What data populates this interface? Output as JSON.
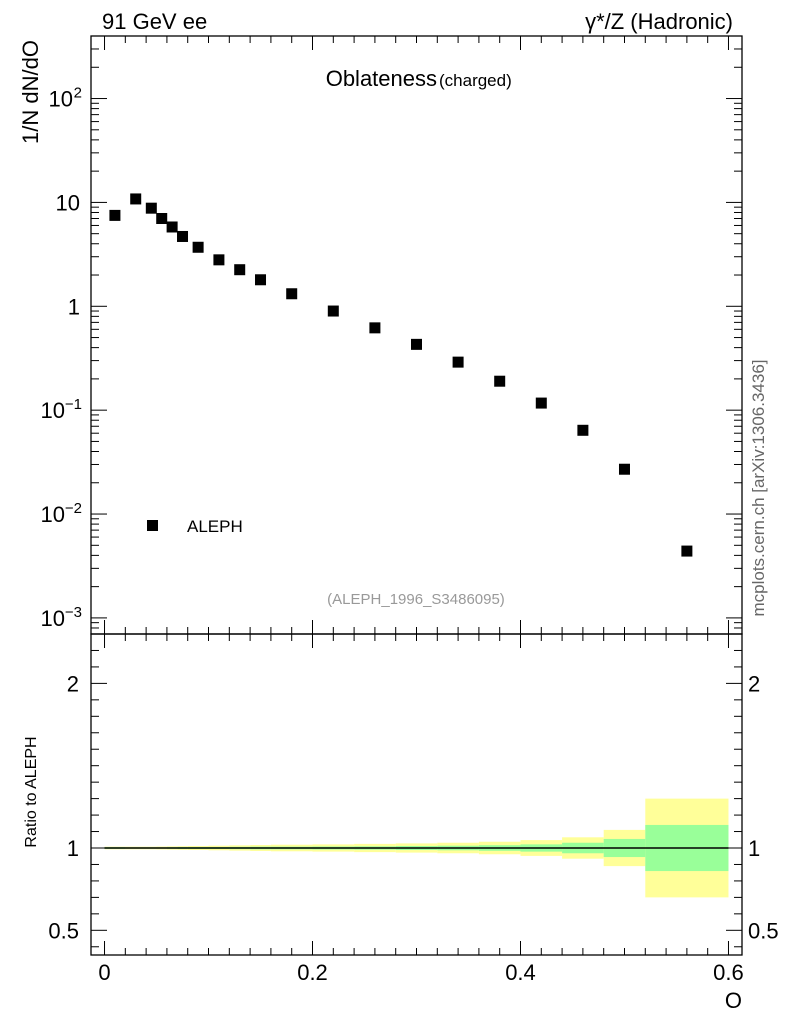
{
  "header": {
    "left": "91 GeV ee",
    "right": "γ*/Z (Hadronic)"
  },
  "chart_data": {
    "type": "scatter",
    "title": "Oblateness",
    "subtitle": "(charged)",
    "xlabel": "O",
    "ylabel": "1/N dN/dO",
    "ratio_ylabel": "Ratio to ALEPH",
    "analysis": "(ALEPH_1996_S3486095)",
    "side_label": "mcplots.cern.ch [arXiv:1306.3436]",
    "log_y": true,
    "xlim": [
      -0.013,
      0.613
    ],
    "ylim": [
      0.0007,
      400
    ],
    "ratio_ylim": [
      0.35,
      2.3
    ],
    "x_ticks": [
      "0",
      "0.2",
      "0.4",
      "0.6"
    ],
    "y_ticks": [
      {
        "base": "10",
        "exp": "−3",
        "value": 0.001
      },
      {
        "base": "10",
        "exp": "−2",
        "value": 0.01
      },
      {
        "base": "10",
        "exp": "−1",
        "value": 0.1
      },
      {
        "base": "1",
        "exp": "",
        "value": 1
      },
      {
        "base": "10",
        "exp": "",
        "value": 10
      },
      {
        "base": "10",
        "exp": "2",
        "value": 100
      }
    ],
    "ratio_ticks": [
      {
        "label": "0.5",
        "value": 0.5
      },
      {
        "label": "1",
        "value": 1
      },
      {
        "label": "2",
        "value": 2
      }
    ],
    "legend": [
      {
        "name": "ALEPH",
        "marker": "square",
        "color": "#000000"
      }
    ],
    "series": [
      {
        "name": "ALEPH",
        "x": [
          0.01,
          0.03,
          0.045,
          0.055,
          0.065,
          0.075,
          0.09,
          0.11,
          0.13,
          0.15,
          0.18,
          0.22,
          0.26,
          0.3,
          0.34,
          0.38,
          0.42,
          0.46,
          0.5,
          0.56
        ],
        "y": [
          7.5,
          10.8,
          8.8,
          7.0,
          5.8,
          4.7,
          3.7,
          2.8,
          2.25,
          1.8,
          1.32,
          0.9,
          0.62,
          0.43,
          0.29,
          0.19,
          0.117,
          0.064,
          0.027,
          0.0044
        ]
      }
    ],
    "ratio_bands": {
      "bin_edges": [
        0,
        0.02,
        0.04,
        0.05,
        0.06,
        0.07,
        0.08,
        0.1,
        0.12,
        0.14,
        0.16,
        0.2,
        0.24,
        0.28,
        0.32,
        0.36,
        0.4,
        0.44,
        0.48,
        0.52,
        0.6
      ],
      "stat": [
        0.005,
        0.004,
        0.004,
        0.004,
        0.005,
        0.006,
        0.006,
        0.006,
        0.007,
        0.008,
        0.008,
        0.009,
        0.01,
        0.012,
        0.014,
        0.017,
        0.022,
        0.032,
        0.055,
        0.14
      ],
      "total": [
        0.008,
        0.008,
        0.008,
        0.009,
        0.01,
        0.011,
        0.012,
        0.014,
        0.016,
        0.018,
        0.02,
        0.022,
        0.025,
        0.028,
        0.032,
        0.038,
        0.048,
        0.065,
        0.11,
        0.3
      ]
    },
    "colors": {
      "stat_band": "#99ff99",
      "total_band": "#ffff99",
      "marker": "#000000"
    }
  }
}
